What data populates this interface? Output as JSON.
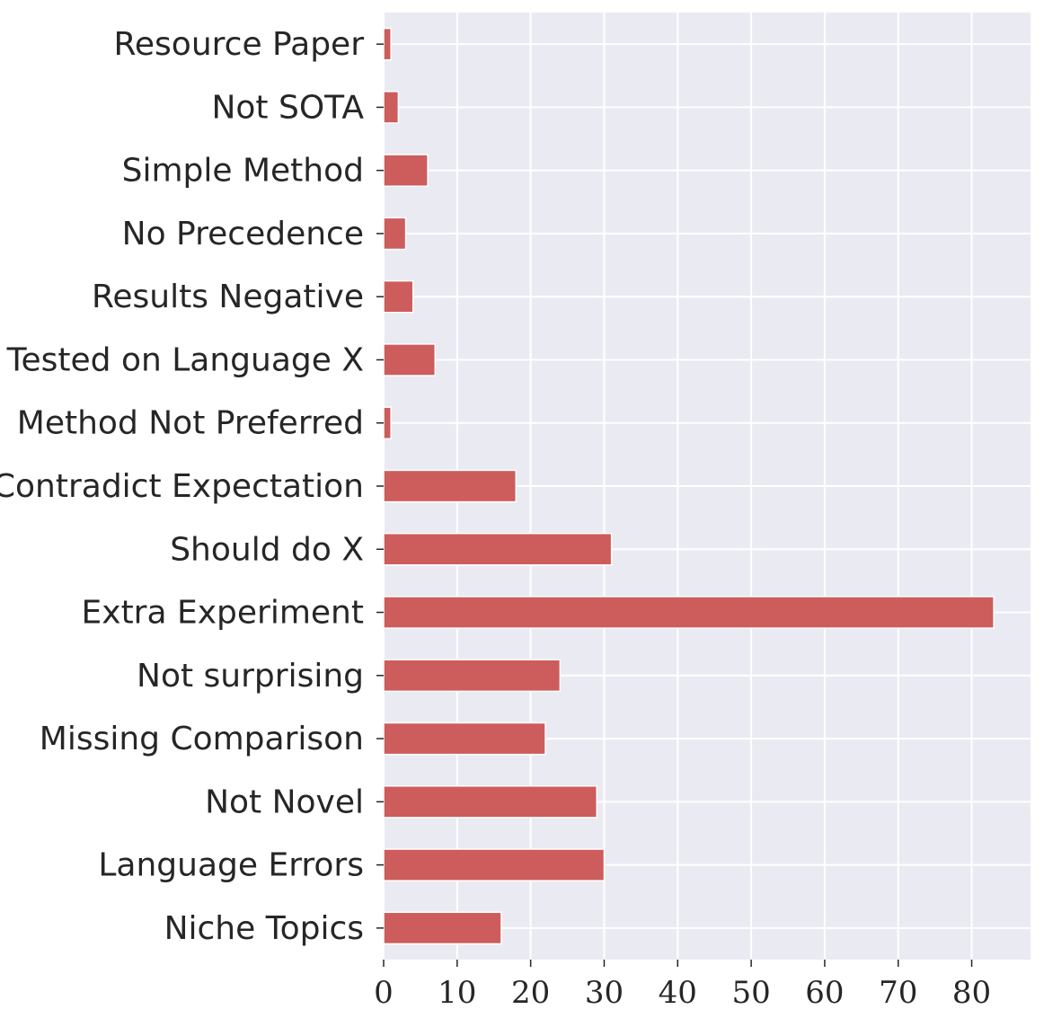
{
  "chart_data": {
    "type": "bar",
    "orientation": "horizontal",
    "title": "",
    "xlabel": "",
    "ylabel": "",
    "categories": [
      "Resource Paper",
      "Not SOTA",
      "Simple Method",
      "No Precedence",
      "Results Negative",
      "Tested on Language X",
      "Method Not Preferred",
      "Contradict Expectation",
      "Should do X",
      "Extra Experiment",
      "Not surprising",
      "Missing Comparison",
      "Not Novel",
      "Language Errors",
      "Niche Topics"
    ],
    "values": [
      1,
      2,
      6,
      3,
      4,
      7,
      1,
      18,
      31,
      83,
      24,
      22,
      29,
      30,
      16
    ],
    "xlim": [
      0,
      88
    ],
    "xticks": [
      0,
      10,
      20,
      30,
      40,
      50,
      60,
      70,
      80
    ],
    "grid": true,
    "legend": "none",
    "colors": {
      "bar": "#cd5c5c",
      "plot_background": "#eaeaf2",
      "grid": "#ffffff",
      "text": "#262626"
    }
  }
}
